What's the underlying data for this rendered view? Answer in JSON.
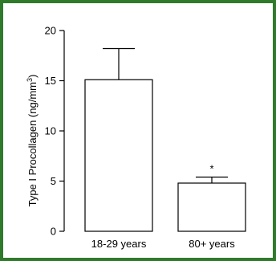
{
  "frame_color": "#2f7a2b",
  "chart_data": {
    "type": "bar",
    "categories": [
      "18-29 years",
      "80+ years"
    ],
    "values": [
      15.1,
      4.8
    ],
    "error_upper": [
      18.2,
      5.4
    ],
    "ylabel_main": "Type I Procollagen (ng/mm",
    "ylabel_sup": "3",
    "ylabel_close": ")",
    "ylim": [
      0,
      20
    ],
    "yticks": [
      "0",
      "5",
      "10",
      "15",
      "20"
    ],
    "annotations": [
      "",
      "*"
    ],
    "bar_fill": "#ffffff",
    "bar_stroke": "#000000"
  }
}
